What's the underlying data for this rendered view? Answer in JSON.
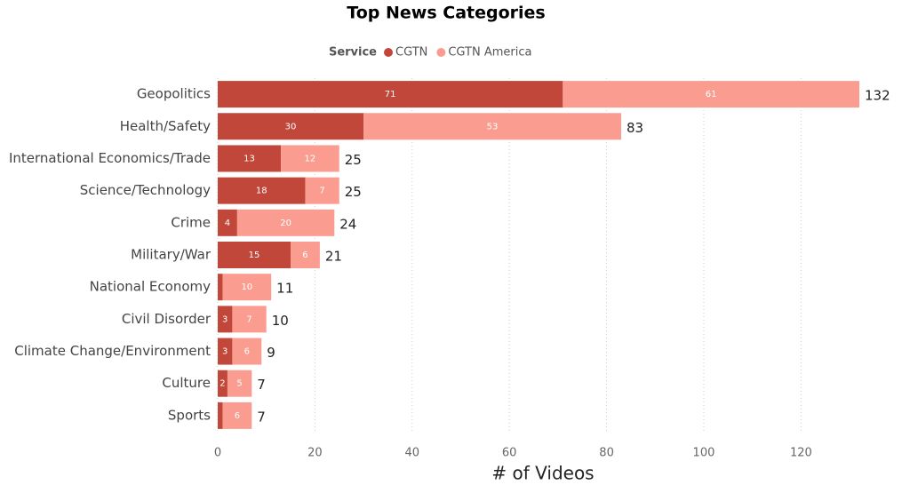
{
  "chart_data": {
    "type": "stacked-bar-horizontal",
    "title": "Top News Categories",
    "legend_title": "Service",
    "categories": [
      "Geopolitics",
      "Health/Safety",
      "International Economics/Trade",
      "Science/Technology",
      "Crime",
      "Military/War",
      "National Economy",
      "Civil Disorder",
      "Climate Change/Environment",
      "Culture",
      "Sports"
    ],
    "series": [
      {
        "name": "CGTN",
        "color": "#c0473a",
        "values": [
          71,
          30,
          13,
          18,
          4,
          15,
          1,
          3,
          3,
          2,
          1
        ]
      },
      {
        "name": "CGTN America",
        "color": "#fa9d90",
        "values": [
          61,
          53,
          12,
          7,
          20,
          6,
          10,
          7,
          6,
          5,
          6
        ]
      }
    ],
    "totals": [
      132,
      83,
      25,
      25,
      24,
      21,
      11,
      10,
      9,
      7,
      7
    ],
    "xlabel": "# of Videos",
    "xlim": [
      0,
      132
    ],
    "xticks": [
      0,
      20,
      40,
      60,
      80,
      100,
      120
    ],
    "grid": true
  }
}
